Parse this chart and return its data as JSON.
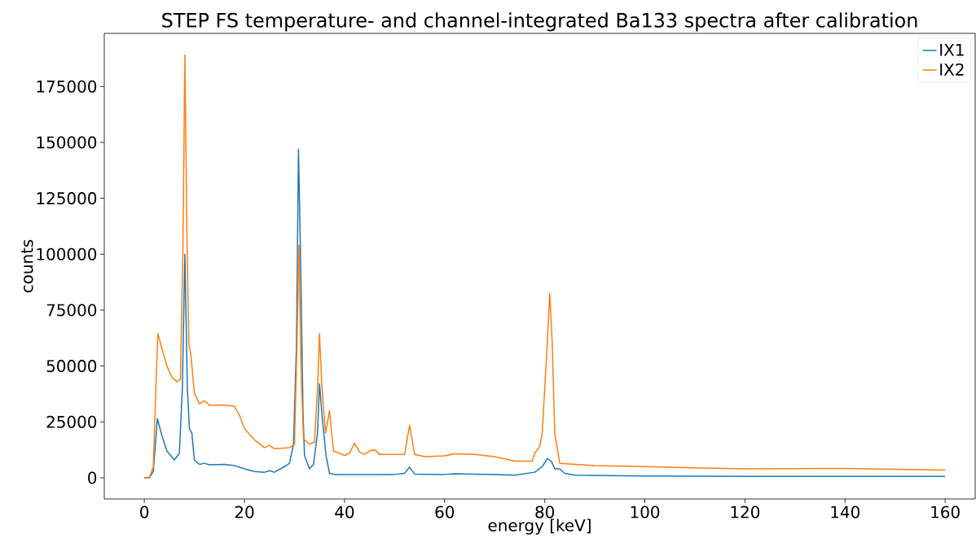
{
  "chart_data": {
    "type": "line",
    "title": "STEP FS temperature- and channel-integrated Ba133 spectra after calibration",
    "xlabel": "energy [keV]",
    "ylabel": "counts",
    "xlim": [
      -8,
      166
    ],
    "ylim": [
      -9465,
      198765
    ],
    "xticks": [
      0,
      20,
      40,
      60,
      80,
      100,
      120,
      140,
      160
    ],
    "yticks": [
      0,
      25000,
      50000,
      75000,
      100000,
      125000,
      150000,
      175000
    ],
    "legend": "top right",
    "grid": false,
    "series": [
      {
        "name": "IX1",
        "color": "#1f77b4",
        "x": [
          0,
          1,
          1.8,
          2.6,
          3.5,
          4.5,
          6,
          7,
          7.6,
          8.1,
          8.6,
          9,
          9.5,
          10,
          11,
          12,
          13,
          16,
          18,
          20,
          22,
          24,
          25,
          26,
          28,
          29,
          29.8,
          30.4,
          30.8,
          31.2,
          31.7,
          32,
          33,
          33.8,
          34.6,
          35,
          35.5,
          36.3,
          37,
          38,
          50,
          52,
          53,
          54,
          60,
          62,
          70,
          74,
          78,
          79.5,
          80.5,
          81.3,
          82,
          83,
          84,
          86,
          100,
          120,
          140,
          160
        ],
        "values": [
          0,
          0,
          3000,
          26500,
          19000,
          12000,
          8000,
          11000,
          40000,
          100000,
          40000,
          22000,
          20000,
          8000,
          6000,
          6500,
          5800,
          6000,
          5500,
          4000,
          2800,
          2500,
          3200,
          2500,
          5000,
          6500,
          15000,
          60000,
          147000,
          100000,
          30000,
          10000,
          4000,
          6000,
          20000,
          42000,
          28000,
          10000,
          2000,
          1500,
          1500,
          2000,
          4800,
          1600,
          1500,
          1800,
          1500,
          1200,
          2500,
          5000,
          8500,
          7500,
          4000,
          4000,
          2000,
          1200,
          800,
          600,
          600,
          600
        ]
      },
      {
        "name": "IX2",
        "color": "#ff7f0e",
        "x": [
          0,
          1,
          1.8,
          2.3,
          2.7,
          3.5,
          4.5,
          5.5,
          6.5,
          7.2,
          7.7,
          8.1,
          8.5,
          8.9,
          9.3,
          10,
          11,
          12,
          13,
          16,
          18,
          19,
          20,
          22,
          24,
          25,
          26,
          29,
          30,
          30.5,
          30.9,
          31.3,
          31.8,
          33,
          34,
          34.6,
          35,
          35.5,
          36.2,
          37,
          37.8,
          40,
          41,
          42,
          43,
          44,
          45,
          46,
          47,
          52,
          53,
          54,
          56,
          60,
          62,
          66,
          70,
          72,
          74,
          77.5,
          78,
          79,
          79.5,
          80.5,
          81,
          81.5,
          82,
          83,
          90,
          100,
          110,
          120,
          140,
          150,
          160
        ],
        "values": [
          0,
          0,
          5000,
          40000,
          64500,
          58000,
          50000,
          45000,
          43000,
          44000,
          100000,
          189000,
          110000,
          60000,
          55000,
          38000,
          33000,
          34500,
          32500,
          32500,
          32000,
          28000,
          22000,
          17000,
          13500,
          14500,
          13000,
          13500,
          15000,
          60000,
          104000,
          50000,
          17500,
          15000,
          16000,
          40000,
          64500,
          40000,
          20000,
          30000,
          12000,
          10000,
          11000,
          15500,
          11500,
          10500,
          12000,
          12500,
          10500,
          10500,
          23500,
          10500,
          9500,
          9800,
          10700,
          10500,
          9500,
          8500,
          7500,
          7500,
          11000,
          14000,
          20000,
          60000,
          82500,
          60000,
          20000,
          6500,
          5500,
          5000,
          4500,
          4000,
          4200,
          3800,
          3500
        ]
      }
    ]
  }
}
